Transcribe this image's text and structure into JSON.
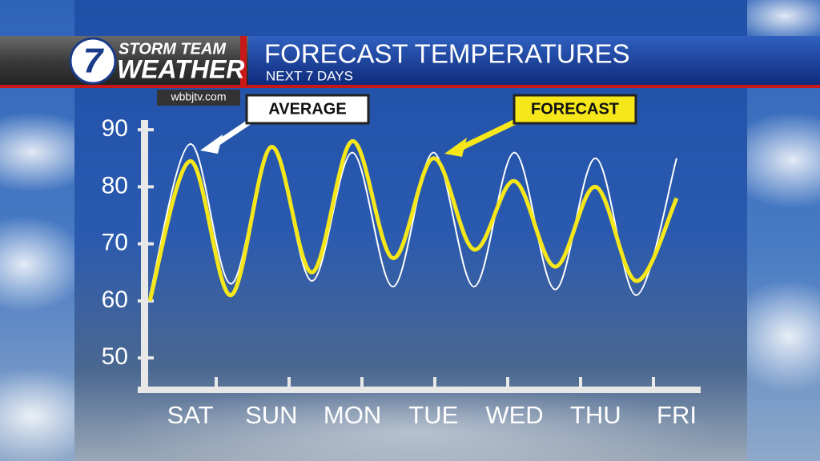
{
  "brand": {
    "line1": "STORM TEAM",
    "line2": "WEATHER",
    "number": "7",
    "website": "wbbjtv.com"
  },
  "chart_data": {
    "type": "line",
    "title": "FORECAST TEMPERATURES",
    "subtitle": "NEXT 7 DAYS",
    "categories": [
      null,
      "SAT",
      null,
      "SUN",
      null,
      "MON",
      null,
      "TUE",
      null,
      "WED",
      null,
      "THU",
      null,
      "FRI"
    ],
    "series": [
      {
        "name": "AVERAGE",
        "color": "#ffffff",
        "values": [
          61,
          87.5,
          63,
          87,
          63.5,
          86,
          62.5,
          86,
          62.5,
          86,
          62,
          85,
          61,
          85
        ]
      },
      {
        "name": "FORECAST",
        "color": "#f5e71a",
        "values": [
          60,
          84.5,
          61,
          87,
          65,
          88,
          67.5,
          85,
          69,
          81,
          66,
          80,
          63.5,
          78
        ]
      }
    ],
    "ylim": [
      44.7,
      91.7
    ],
    "yticks": [
      50,
      60,
      70,
      80,
      90
    ],
    "smooth": true
  }
}
